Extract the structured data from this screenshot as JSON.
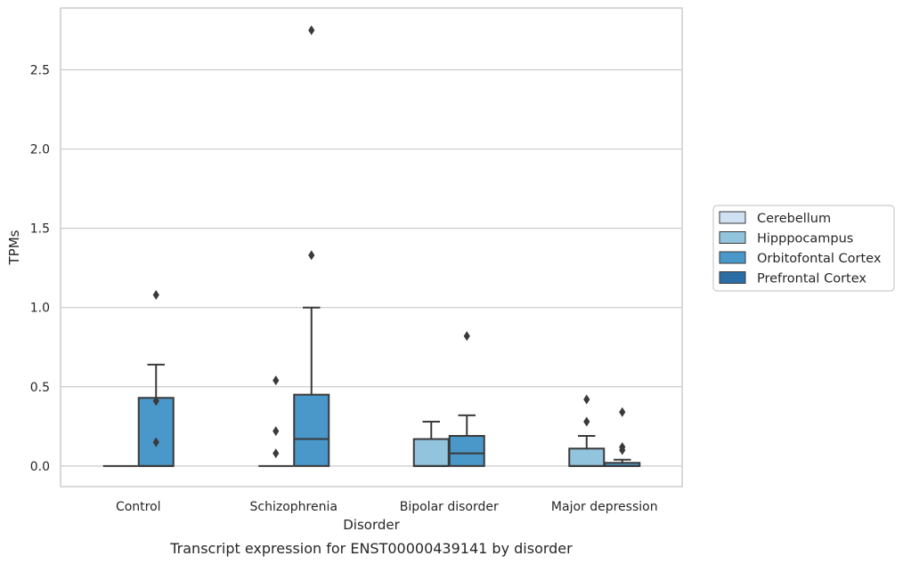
{
  "chart_data": {
    "type": "box",
    "caption": "Transcript expression for ENST00000439141 by disorder",
    "xlabel": "Disorder",
    "ylabel": "TPMs",
    "ylim": [
      -0.13,
      2.89
    ],
    "yticks": [
      "0.0",
      "0.5",
      "1.0",
      "1.5",
      "2.0",
      "2.5"
    ],
    "grid": "horizontal",
    "legend_position": "right",
    "categories": [
      "Control",
      "Schizophrenia",
      "Bipolar disorder",
      "Major depression"
    ],
    "series": [
      {
        "name": "Cerebellum",
        "color": "#cfe1f2"
      },
      {
        "name": "Hipppocampus",
        "color": "#93c4de"
      },
      {
        "name": "Orbitofontal Cortex",
        "color": "#4a98c9"
      },
      {
        "name": "Prefrontal Cortex",
        "color": "#2b6ea6"
      }
    ],
    "boxes": [
      {
        "category": "Control",
        "series": "Hipppocampus",
        "q1": 0,
        "median": 0,
        "q3": 0,
        "whisker_low": 0,
        "whisker_high": 0,
        "outliers": []
      },
      {
        "category": "Control",
        "series": "Orbitofontal Cortex",
        "q1": 0,
        "median": 0,
        "q3": 0.43,
        "whisker_low": 0,
        "whisker_high": 0.64,
        "outliers": [
          1.08,
          0.41,
          0.15
        ]
      },
      {
        "category": "Schizophrenia",
        "series": "Hipppocampus",
        "q1": 0,
        "median": 0,
        "q3": 0,
        "whisker_low": 0,
        "whisker_high": 0,
        "outliers": [
          0.54,
          0.22,
          0.08
        ]
      },
      {
        "category": "Schizophrenia",
        "series": "Orbitofontal Cortex",
        "q1": 0,
        "median": 0.17,
        "q3": 0.45,
        "whisker_low": 0,
        "whisker_high": 1.0,
        "outliers": [
          2.75,
          1.33
        ]
      },
      {
        "category": "Bipolar disorder",
        "series": "Hipppocampus",
        "q1": 0,
        "median": 0,
        "q3": 0.17,
        "whisker_low": 0,
        "whisker_high": 0.28,
        "outliers": []
      },
      {
        "category": "Bipolar disorder",
        "series": "Orbitofontal Cortex",
        "q1": 0,
        "median": 0.08,
        "q3": 0.19,
        "whisker_low": 0,
        "whisker_high": 0.32,
        "outliers": [
          0.82
        ]
      },
      {
        "category": "Major depression",
        "series": "Hipppocampus",
        "q1": 0,
        "median": 0,
        "q3": 0.11,
        "whisker_low": 0,
        "whisker_high": 0.19,
        "outliers": [
          0.42,
          0.28
        ]
      },
      {
        "category": "Major depression",
        "series": "Orbitofontal Cortex",
        "q1": 0,
        "median": 0,
        "q3": 0.02,
        "whisker_low": 0,
        "whisker_high": 0.04,
        "outliers": [
          0.34,
          0.12,
          0.1
        ]
      }
    ]
  }
}
